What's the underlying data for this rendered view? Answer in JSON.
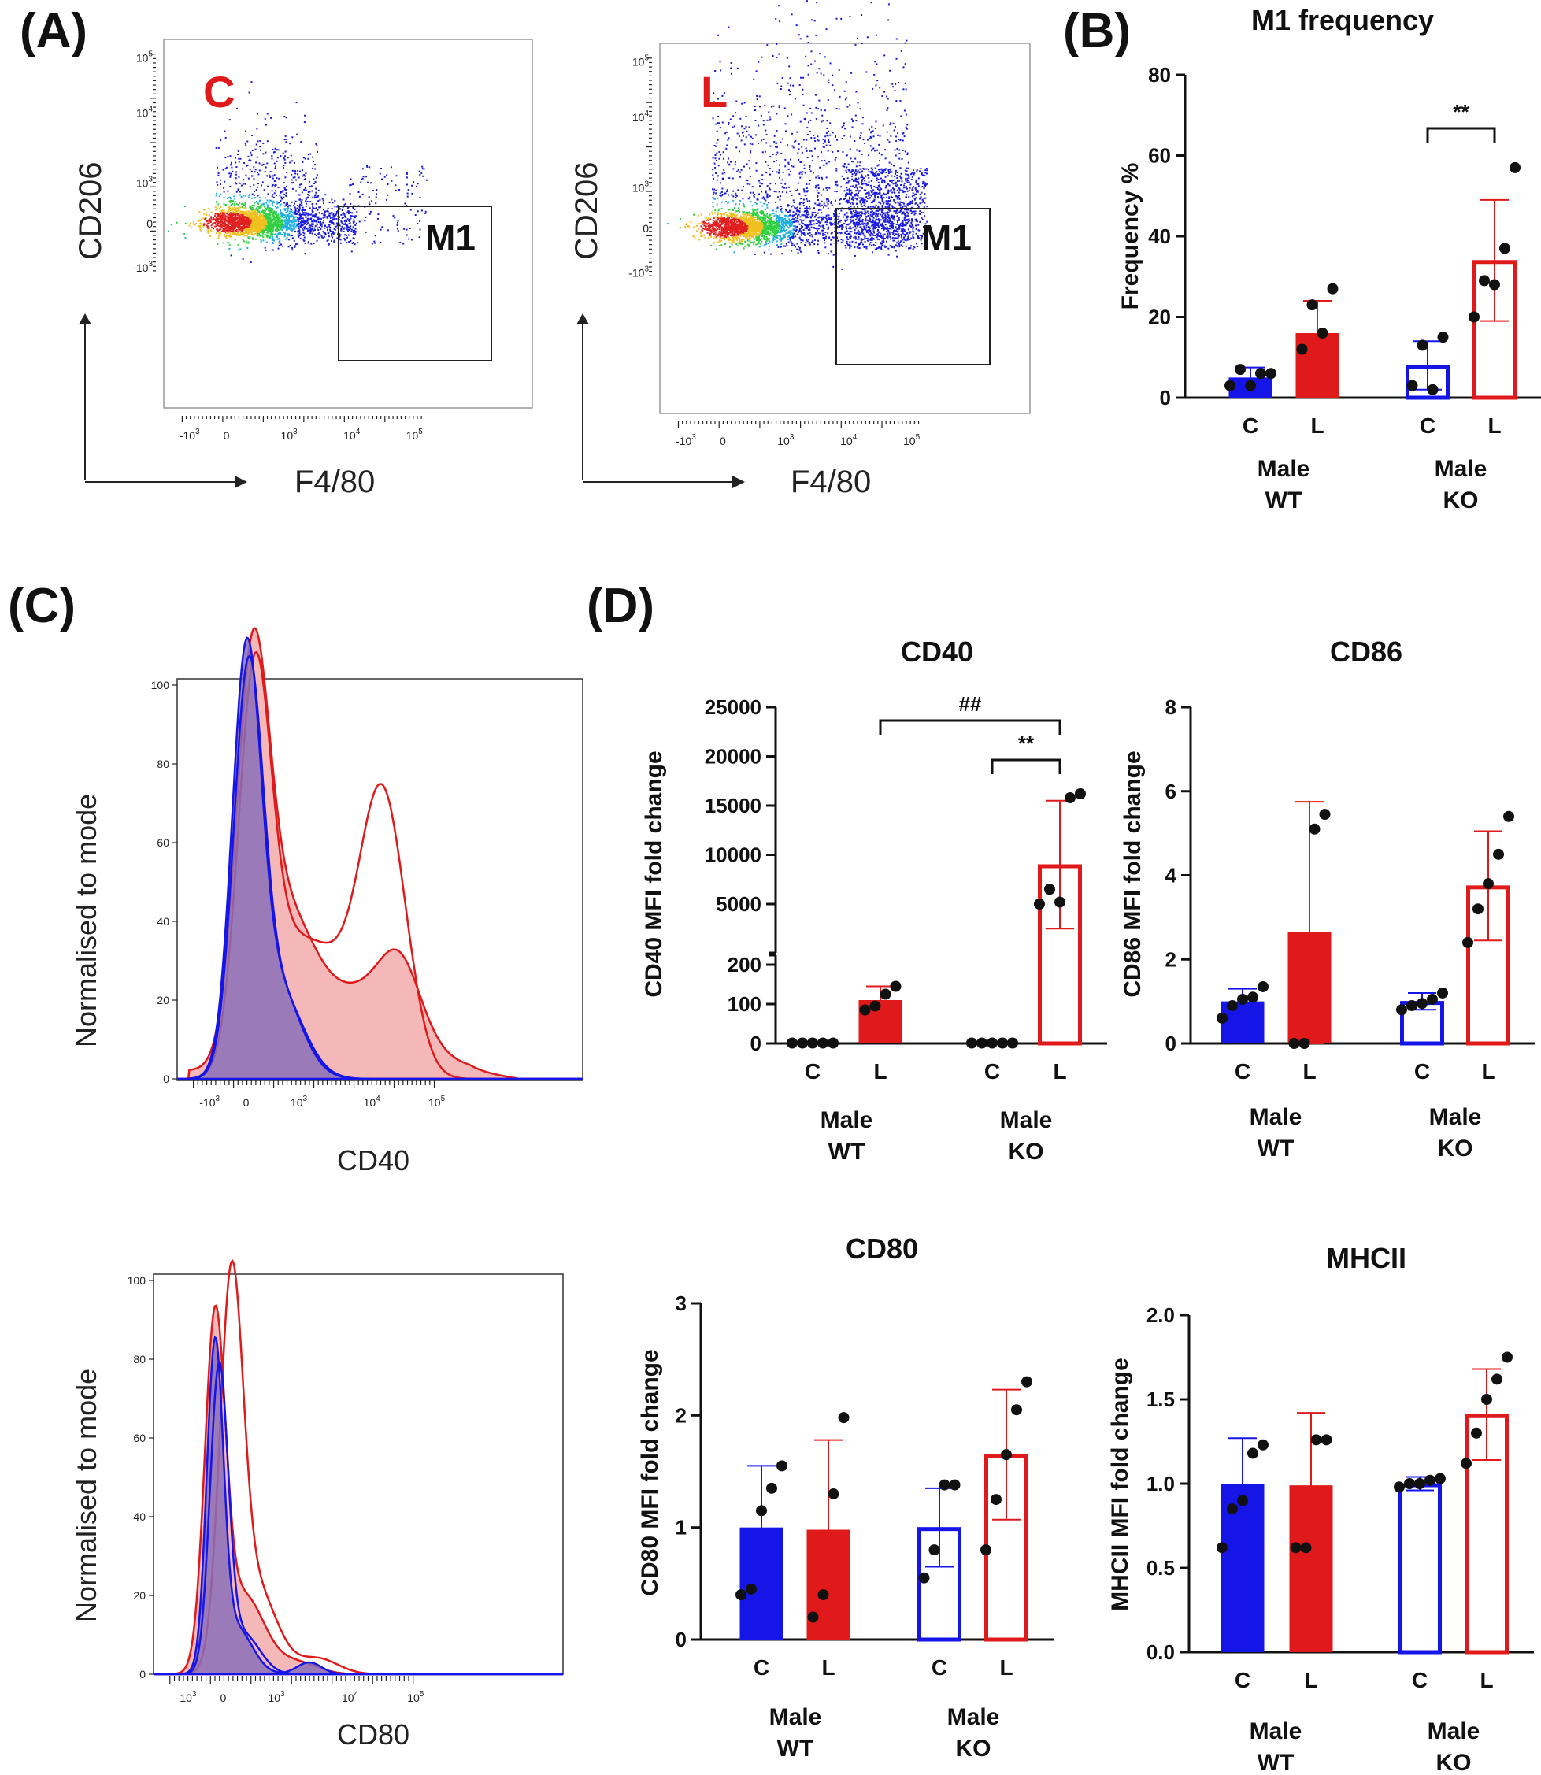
{
  "panels": {
    "a": "(A)",
    "b": "(B)",
    "c": "(C)",
    "d": "(D)"
  },
  "colors": {
    "blue": "#1515e8",
    "red": "#e01a1a",
    "black": "#111111",
    "redfill": "#f4b8b8",
    "bluefill": "#8a6fb8"
  },
  "flow": {
    "plots": [
      {
        "label": "C",
        "gate": "M1",
        "ylabel": "CD206",
        "xlabel": "F4/80"
      },
      {
        "label": "L",
        "gate": "M1",
        "ylabel": "CD206",
        "xlabel": "F4/80"
      }
    ],
    "yticks": [
      "10^5",
      "10^4",
      "10^3",
      "0",
      "-10^3"
    ],
    "xticks": [
      "-10^3",
      "0",
      "10^3",
      "10^4",
      "10^5"
    ]
  },
  "histograms": [
    {
      "marker": "CD40",
      "ylabel": "Normalised to mode",
      "xlabel": "CD40",
      "yticks": [
        "100",
        "80",
        "60",
        "40",
        "20",
        "0"
      ],
      "xticks": [
        "-10^3",
        "0",
        "10^3",
        "10^4",
        "10^5"
      ]
    },
    {
      "marker": "CD80",
      "ylabel": "Normalised to mode",
      "xlabel": "CD80",
      "yticks": [
        "100",
        "80",
        "60",
        "40",
        "20",
        "0"
      ],
      "xticks": [
        "-10^3",
        "0",
        "10^3",
        "10^4",
        "10^5"
      ]
    }
  ],
  "chart_data": [
    {
      "id": "m1",
      "type": "bar",
      "title": "M1 frequency",
      "ylabel": "Frequency %",
      "ylim": [
        0,
        80
      ],
      "yticks": [
        0,
        20,
        40,
        60,
        80
      ],
      "categories": [
        "C",
        "L",
        "C",
        "L"
      ],
      "groups": [
        {
          "line1": "Male",
          "line2": "WT"
        },
        {
          "line1": "Male",
          "line2": "KO"
        }
      ],
      "values": [
        5,
        16,
        8,
        34
      ],
      "errors": [
        2.5,
        8,
        6,
        15
      ],
      "filled": [
        true,
        true,
        false,
        false
      ],
      "points": [
        [
          3,
          7,
          3,
          6,
          6
        ],
        [
          12,
          23,
          16,
          27
        ],
        [
          3,
          13,
          2,
          15
        ],
        [
          20,
          29,
          28,
          37,
          57
        ]
      ],
      "annotations": [
        {
          "text": "**",
          "from": 2,
          "to": 3
        }
      ]
    },
    {
      "id": "cd40",
      "type": "bar",
      "title": "CD40",
      "ylabel": "CD40 MFI fold change",
      "broken_axis": true,
      "ylim_lower": [
        0,
        200
      ],
      "yticks_lower": [
        0,
        100,
        200
      ],
      "ylim_upper": [
        1000,
        25000
      ],
      "yticks_upper": [
        5000,
        10000,
        15000,
        20000,
        25000
      ],
      "categories": [
        "C",
        "L",
        "C",
        "L"
      ],
      "groups": [
        {
          "line1": "Male",
          "line2": "WT"
        },
        {
          "line1": "Male",
          "line2": "KO"
        }
      ],
      "values": [
        1,
        110,
        1,
        9000
      ],
      "errors": [
        0,
        35,
        0,
        6500
      ],
      "filled": [
        true,
        true,
        false,
        false
      ],
      "points": [
        [
          1,
          1,
          1,
          1,
          1
        ],
        [
          85,
          95,
          125,
          145
        ],
        [
          1,
          1,
          1,
          1,
          1
        ],
        [
          5000,
          6500,
          5200,
          15800,
          16200
        ]
      ],
      "annotations": [
        {
          "text": "##",
          "from": 1,
          "to": 3
        },
        {
          "text": "**",
          "from": 2,
          "to": 3
        }
      ]
    },
    {
      "id": "cd86",
      "type": "bar",
      "title": "CD86",
      "ylabel": "CD86 MFI fold change",
      "ylim": [
        0,
        8
      ],
      "yticks": [
        0,
        2,
        4,
        6,
        8
      ],
      "categories": [
        "C",
        "L",
        "C",
        "L"
      ],
      "groups": [
        {
          "line1": "Male",
          "line2": "WT"
        },
        {
          "line1": "Male",
          "line2": "KO"
        }
      ],
      "values": [
        1,
        2.65,
        1,
        3.75
      ],
      "errors": [
        0.3,
        3.1,
        0.2,
        1.3
      ],
      "filled": [
        true,
        true,
        false,
        false
      ],
      "points": [
        [
          0.6,
          0.9,
          1.05,
          1.1,
          1.35
        ],
        [
          0,
          0,
          5.1,
          5.45
        ],
        [
          0.8,
          0.9,
          0.95,
          1.05,
          1.2
        ],
        [
          2.4,
          3.2,
          3.8,
          4.5,
          5.4
        ]
      ],
      "annotations": []
    },
    {
      "id": "cd80",
      "type": "bar",
      "title": "CD80",
      "ylabel": "CD80 MFI fold change",
      "ylim": [
        0,
        3
      ],
      "yticks": [
        0,
        1,
        2,
        3
      ],
      "categories": [
        "C",
        "L",
        "C",
        "L"
      ],
      "groups": [
        {
          "line1": "Male",
          "line2": "WT"
        },
        {
          "line1": "Male",
          "line2": "KO"
        }
      ],
      "values": [
        1,
        0.98,
        1,
        1.65
      ],
      "errors": [
        0.55,
        0.8,
        0.35,
        0.58
      ],
      "filled": [
        true,
        true,
        false,
        false
      ],
      "points": [
        [
          0.4,
          0.45,
          1.15,
          1.35,
          1.55
        ],
        [
          0.2,
          0.4,
          1.3,
          1.98
        ],
        [
          0.55,
          0.8,
          1.38,
          1.38
        ],
        [
          0.8,
          1.25,
          1.65,
          2.05,
          2.3
        ]
      ],
      "annotations": []
    },
    {
      "id": "mhcii",
      "type": "bar",
      "title": "MHCII",
      "ylabel": "MHCII MFI fold change",
      "ylim": [
        0,
        2
      ],
      "yticks": [
        "0.0",
        "0.5",
        "1.0",
        "1.5",
        "2.0"
      ],
      "categories": [
        "C",
        "L",
        "C",
        "L"
      ],
      "groups": [
        {
          "line1": "Male",
          "line2": "WT"
        },
        {
          "line1": "Male",
          "line2": "KO"
        }
      ],
      "values": [
        1,
        0.99,
        1,
        1.41
      ],
      "errors": [
        0.27,
        0.43,
        0.04,
        0.27
      ],
      "filled": [
        true,
        true,
        false,
        false
      ],
      "points": [
        [
          0.62,
          0.85,
          0.9,
          1.18,
          1.23
        ],
        [
          0.62,
          0.62,
          1.26,
          1.26
        ],
        [
          0.98,
          1.0,
          1.0,
          1.02,
          1.03
        ],
        [
          1.12,
          1.3,
          1.5,
          1.62,
          1.75
        ]
      ],
      "annotations": []
    }
  ]
}
